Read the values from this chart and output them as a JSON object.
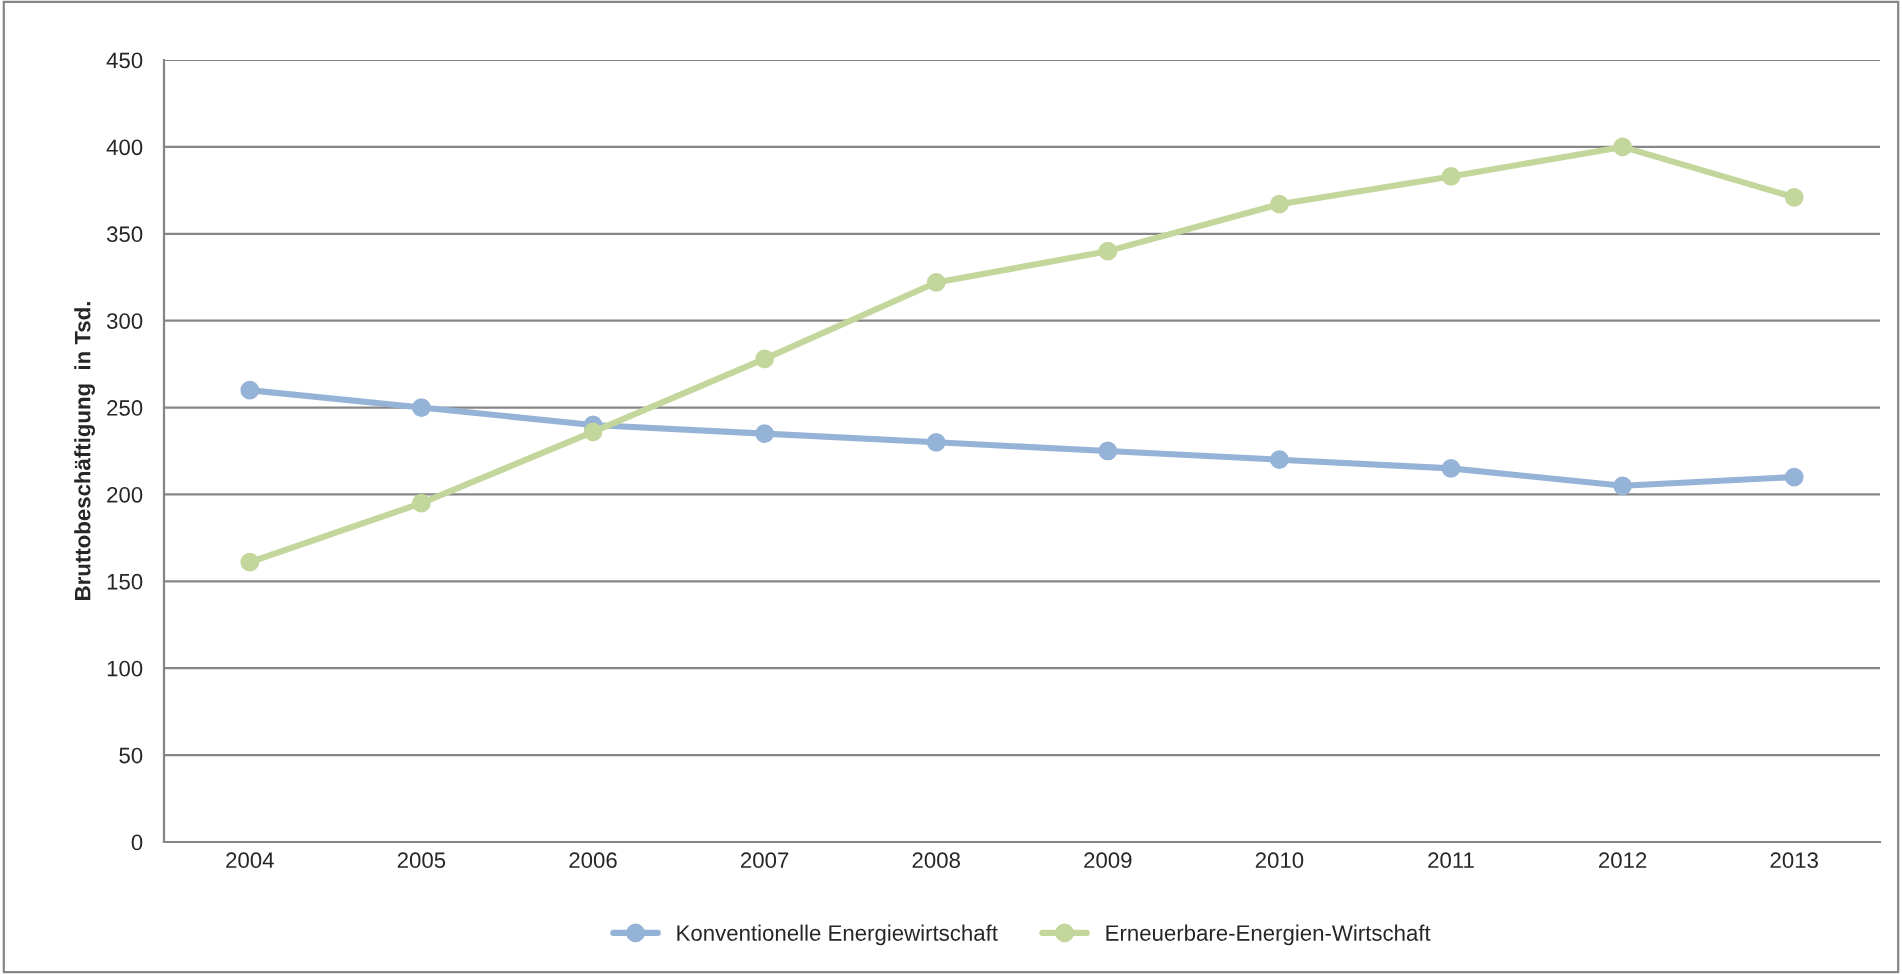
{
  "chart_data": {
    "type": "line",
    "ylabel": "Bruttobeschäftigung  in Tsd.",
    "categories": [
      "2004",
      "2005",
      "2006",
      "2007",
      "2008",
      "2009",
      "2010",
      "2011",
      "2012",
      "2013"
    ],
    "series": [
      {
        "name": "Konventionelle Energiewirtschaft",
        "color": "#95b3d7",
        "values": [
          260,
          250,
          240,
          235,
          230,
          225,
          220,
          215,
          205,
          210
        ]
      },
      {
        "name": "Erneuerbare-Energien-Wirtschaft",
        "color": "#c3d69b",
        "values": [
          161,
          195,
          236,
          278,
          322,
          340,
          367,
          383,
          400,
          371
        ]
      }
    ],
    "ylim": [
      0,
      450
    ],
    "yticks": [
      0,
      50,
      100,
      150,
      200,
      250,
      300,
      350,
      400,
      450
    ],
    "grid": "y",
    "legend": "bottom",
    "marker": "circle",
    "line_style": "solid"
  }
}
